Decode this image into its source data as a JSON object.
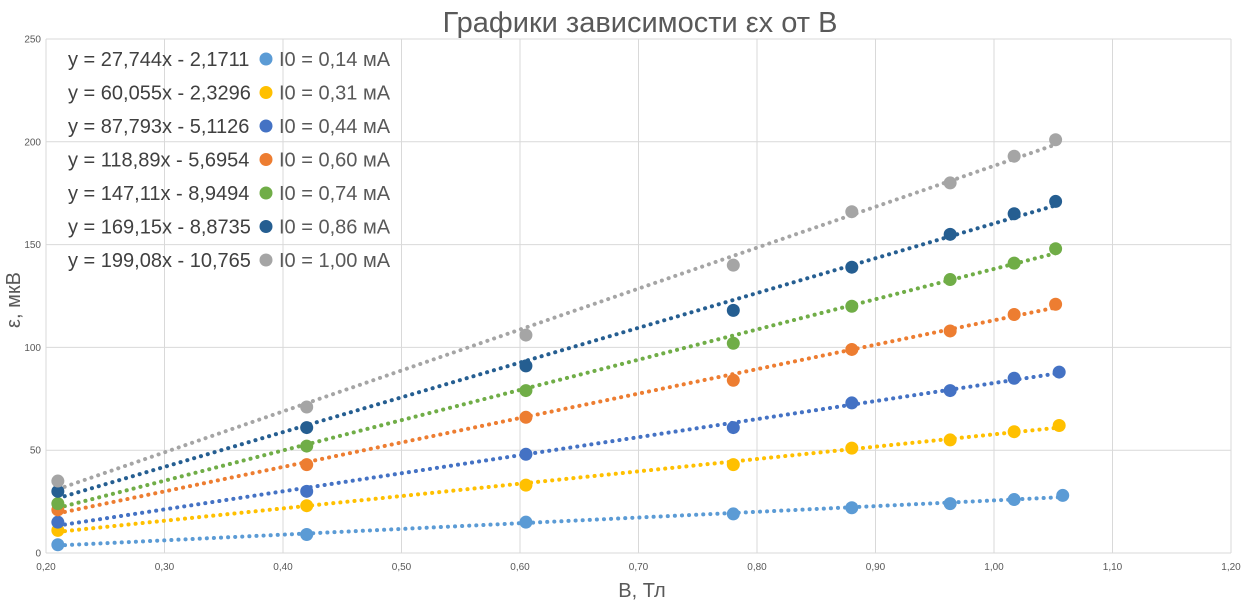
{
  "chart_data": {
    "type": "scatter",
    "title": "Графики зависимости εx от B",
    "xlabel": "B, Тл",
    "ylabel": "ε, мкВ",
    "xlim": [
      0.2,
      1.2
    ],
    "ylim": [
      0,
      250
    ],
    "x_ticks": [
      "0,20",
      "0,30",
      "0,40",
      "0,50",
      "0,60",
      "0,70",
      "0,80",
      "0,90",
      "1,00",
      "1,10",
      "1,20"
    ],
    "y_ticks": [
      "0",
      "50",
      "100",
      "150",
      "200",
      "250"
    ],
    "grid": true,
    "legend_position": "top-left",
    "trendline": "linear-dotted",
    "series": [
      {
        "name": "I0 = 0,14 мА",
        "color": "#5B9BD5",
        "equation": "y = 27,744x - 2,1711",
        "slope": 27.744,
        "intercept": -2.1711,
        "x": [
          0.21,
          0.42,
          0.605,
          0.78,
          0.88,
          0.963,
          1.017,
          1.058
        ],
        "y": [
          4,
          9,
          15,
          19,
          22,
          24,
          26,
          28
        ]
      },
      {
        "name": "I0 = 0,31 мА",
        "color": "#FFC000",
        "equation": "y = 60,055x - 2,3296",
        "slope": 60.055,
        "intercept": -2.3296,
        "x": [
          0.21,
          0.42,
          0.605,
          0.78,
          0.88,
          0.963,
          1.017,
          1.055
        ],
        "y": [
          11,
          23,
          33,
          43,
          51,
          55,
          59,
          62
        ]
      },
      {
        "name": "I0 = 0,44 мА",
        "color": "#4472C4",
        "equation": "y = 87,793x - 5,1126",
        "slope": 87.793,
        "intercept": -5.1126,
        "x": [
          0.21,
          0.42,
          0.605,
          0.78,
          0.88,
          0.963,
          1.017,
          1.055
        ],
        "y": [
          15,
          30,
          48,
          61,
          73,
          79,
          85,
          88
        ]
      },
      {
        "name": "I0 = 0,60 мА",
        "color": "#ED7D31",
        "equation": "y = 118,89x - 5,6954",
        "slope": 118.89,
        "intercept": -5.6954,
        "x": [
          0.21,
          0.42,
          0.605,
          0.78,
          0.88,
          0.963,
          1.017,
          1.052
        ],
        "y": [
          21,
          43,
          66,
          84,
          99,
          108,
          116,
          121
        ]
      },
      {
        "name": "I0 = 0,74 мА",
        "color": "#70AD47",
        "equation": "y = 147,11x - 8,9494",
        "slope": 147.11,
        "intercept": -8.9494,
        "x": [
          0.21,
          0.42,
          0.605,
          0.78,
          0.88,
          0.963,
          1.017,
          1.052
        ],
        "y": [
          24,
          52,
          79,
          102,
          120,
          133,
          141,
          148
        ]
      },
      {
        "name": "I0 = 0,86 мА",
        "color": "#255E91",
        "equation": "y = 169,15x - 8,8735",
        "slope": 169.15,
        "intercept": -8.8735,
        "x": [
          0.21,
          0.42,
          0.605,
          0.78,
          0.88,
          0.963,
          1.017,
          1.052
        ],
        "y": [
          30,
          61,
          91,
          118,
          139,
          155,
          165,
          171
        ]
      },
      {
        "name": "I0 = 1,00 мА",
        "color": "#A5A5A5",
        "equation": "y = 199,08x - 10,765",
        "slope": 199.08,
        "intercept": -10.765,
        "x": [
          0.21,
          0.42,
          0.605,
          0.78,
          0.88,
          0.963,
          1.017,
          1.052
        ],
        "y": [
          35,
          71,
          106,
          140,
          166,
          180,
          193,
          201
        ]
      }
    ]
  }
}
